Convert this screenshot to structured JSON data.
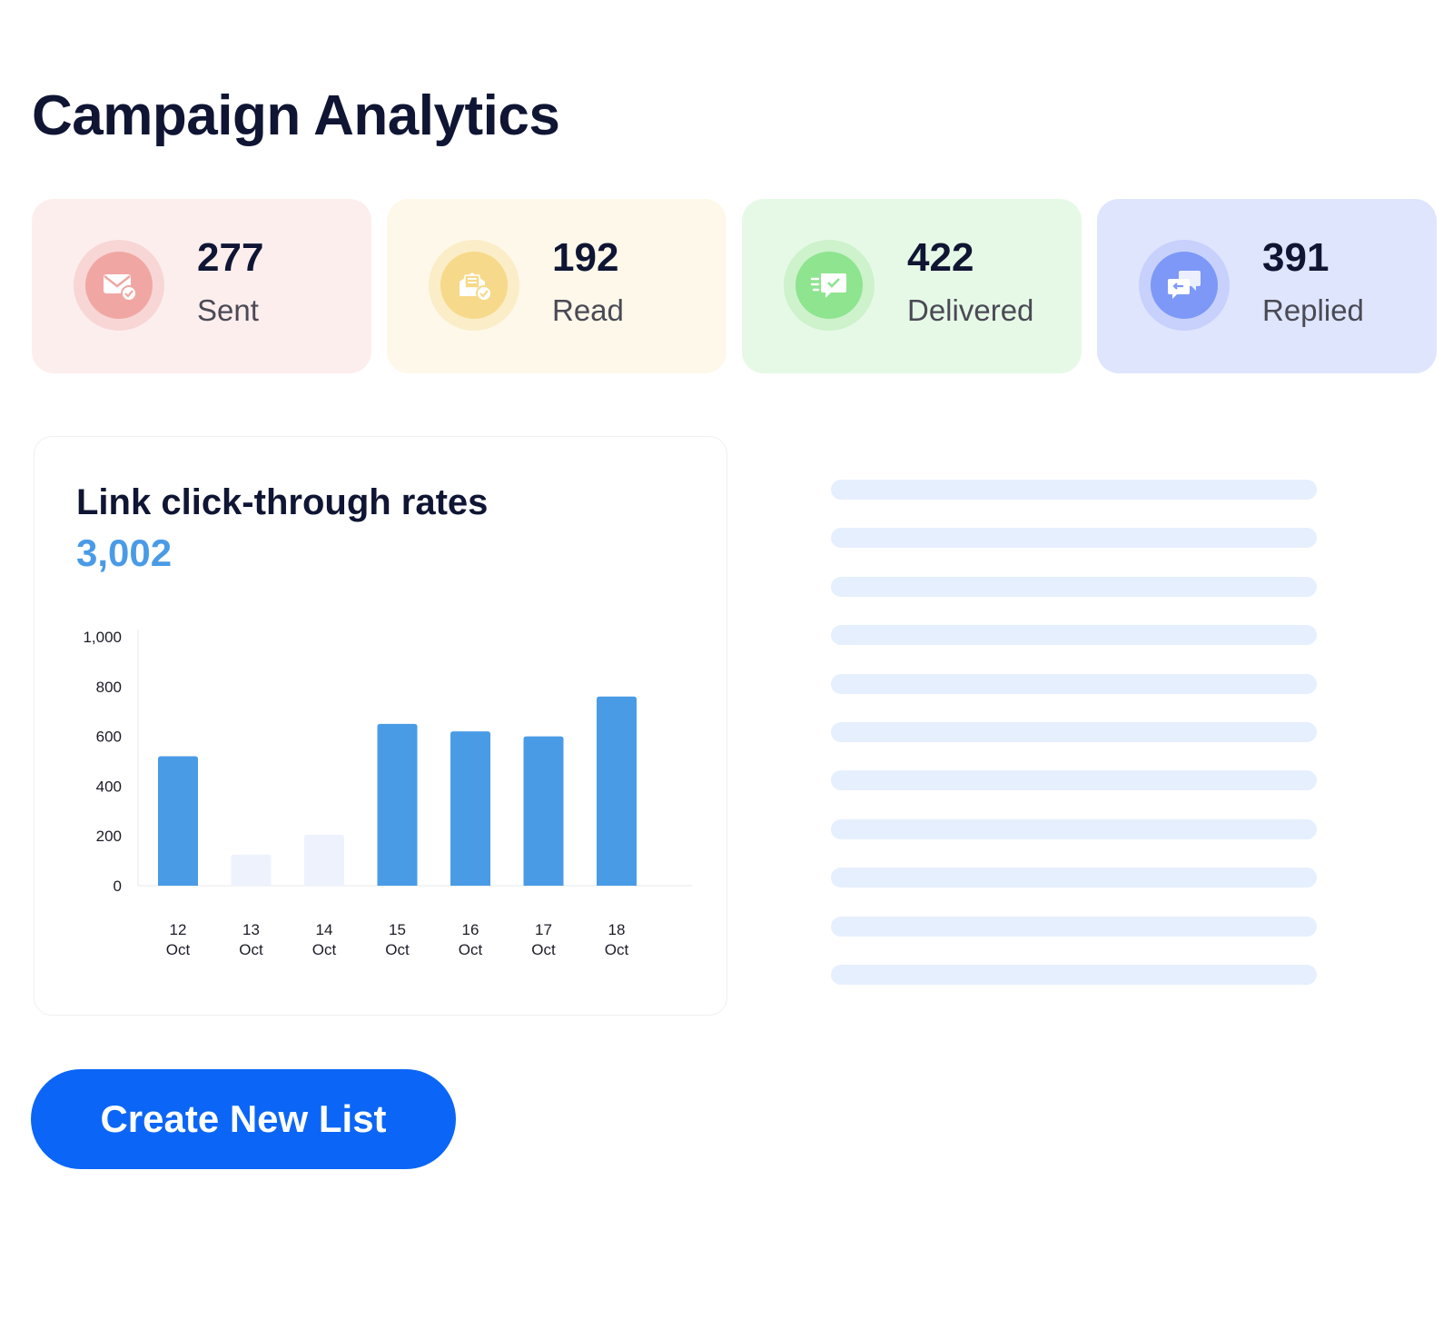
{
  "page": {
    "title": "Campaign Analytics"
  },
  "stats": [
    {
      "value": "277",
      "label": "Sent",
      "icon": "mail-check-icon",
      "bg": "#fdeeee",
      "ring": "#f8d6d6",
      "icon_bg": "#f0a7a3"
    },
    {
      "value": "192",
      "label": "Read",
      "icon": "open-envelope-icon",
      "bg": "#fdf8e9",
      "ring": "#fbedc8",
      "icon_bg": "#f6d98a"
    },
    {
      "value": "422",
      "label": "Delivered",
      "icon": "chat-check-icon",
      "bg": "#e6f9e6",
      "ring": "#cdf2cc",
      "icon_bg": "#8ee48f"
    },
    {
      "value": "391",
      "label": "Replied",
      "icon": "chat-reply-icon",
      "bg": "#dfe5fd",
      "ring": "#c7d1fb",
      "icon_bg": "#7d98f7"
    }
  ],
  "chart_card": {
    "title": "Link click-through rates",
    "total": "3,002"
  },
  "chart_data": {
    "type": "bar",
    "categories": [
      "12 Oct",
      "13 Oct",
      "14 Oct",
      "15 Oct",
      "16 Oct",
      "17 Oct",
      "18 Oct"
    ],
    "category_lines": [
      [
        "12",
        "Oct"
      ],
      [
        "13",
        "Oct"
      ],
      [
        "14",
        "Oct"
      ],
      [
        "15",
        "Oct"
      ],
      [
        "16",
        "Oct"
      ],
      [
        "17",
        "Oct"
      ],
      [
        "18",
        "Oct"
      ]
    ],
    "values": [
      520,
      125,
      205,
      650,
      620,
      600,
      760
    ],
    "highlight": [
      true,
      false,
      false,
      true,
      true,
      true,
      true
    ],
    "yticks": [
      "0",
      "200",
      "400",
      "600",
      "800",
      "1,000"
    ],
    "ylim": [
      0,
      1000
    ],
    "colors": {
      "bar": "#4a9be6",
      "bar_muted": "#eef2fd",
      "axis": "#eef0f4"
    },
    "grid": false
  },
  "placeholder": {
    "line_count": 11,
    "color": "#e6effd"
  },
  "actions": {
    "create_label": "Create New List"
  }
}
